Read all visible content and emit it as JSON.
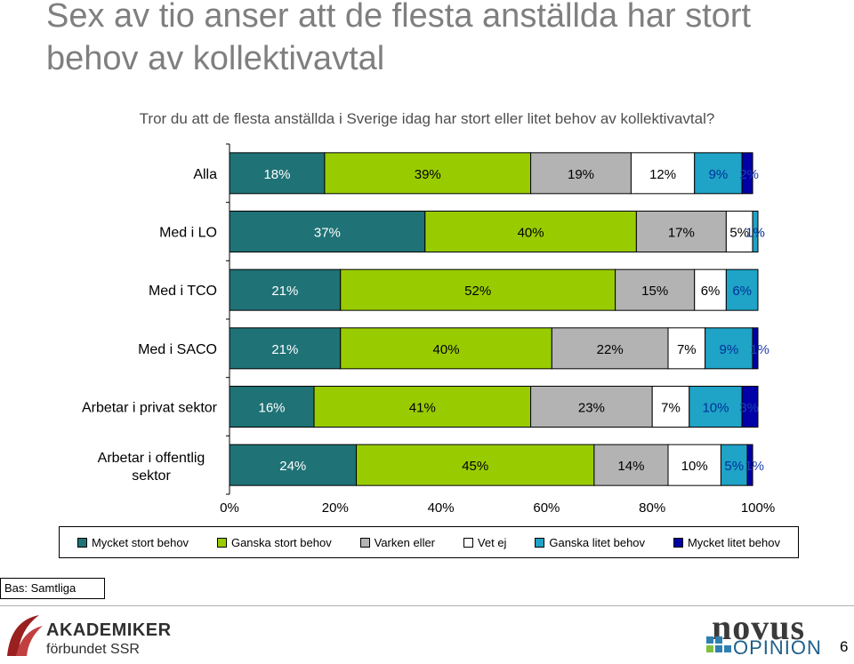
{
  "title": "Sex av tio anser att de flesta anställda har stort behov av kollektivavtal",
  "subtitle": "Tror du att de flesta anställda i Sverige idag har stort eller litet behov av kollektivavtal?",
  "colors": {
    "mycket_stort": "#1f7276",
    "ganska_stort": "#99cc00",
    "varken_eller": "#b3b3b3",
    "vet_ej": "#ffffff",
    "ganska_litet": "#1fa3c6",
    "mycket_litet": "#0000a8"
  },
  "chart_data": {
    "type": "bar",
    "orientation": "horizontal",
    "stacked": true,
    "categories": [
      "Alla",
      "Med i LO",
      "Med i TCO",
      "Med i SACO",
      "Arbetar i privat sektor",
      "Arbetar i offentlig sektor"
    ],
    "series": [
      {
        "name": "Mycket stort behov",
        "values": [
          18,
          37,
          21,
          21,
          16,
          24
        ]
      },
      {
        "name": "Ganska stort behov",
        "values": [
          39,
          40,
          52,
          40,
          41,
          45
        ]
      },
      {
        "name": "Varken eller",
        "values": [
          19,
          17,
          15,
          22,
          23,
          14
        ]
      },
      {
        "name": "Vet ej",
        "values": [
          12,
          5,
          6,
          7,
          7,
          10
        ]
      },
      {
        "name": "Ganska litet behov",
        "values": [
          9,
          1,
          6,
          9,
          10,
          5
        ]
      },
      {
        "name": "Mycket litet behov",
        "values": [
          2,
          0,
          0,
          1,
          3,
          1
        ]
      }
    ],
    "value_labels": [
      [
        "18%",
        "39%",
        "19%",
        "12%",
        "9%",
        "2%"
      ],
      [
        "37%",
        "40%",
        "17%",
        "5%",
        "1%",
        ""
      ],
      [
        "21%",
        "52%",
        "15%",
        "6%",
        "6%",
        ""
      ],
      [
        "21%",
        "40%",
        "22%",
        "7%",
        "9%",
        "1%"
      ],
      [
        "16%",
        "41%",
        "23%",
        "7%",
        "10%",
        "3%"
      ],
      [
        "24%",
        "45%",
        "14%",
        "10%",
        "5%",
        "1%"
      ]
    ],
    "xlim": [
      0,
      100
    ],
    "xticks": [
      "0%",
      "20%",
      "40%",
      "60%",
      "80%",
      "100%"
    ],
    "legend_position": "bottom"
  },
  "legend": [
    {
      "label": "Mycket stort behov",
      "color_key": "mycket_stort"
    },
    {
      "label": "Ganska stort behov",
      "color_key": "ganska_stort"
    },
    {
      "label": "Varken eller",
      "color_key": "varken_eller"
    },
    {
      "label": "Vet ej",
      "color_key": "vet_ej"
    },
    {
      "label": "Ganska litet behov",
      "color_key": "ganska_litet"
    },
    {
      "label": "Mycket litet behov",
      "color_key": "mycket_litet"
    }
  ],
  "base_note": "Bas: Samtliga",
  "logos": {
    "akademiker_line1": "AKADEMIKER",
    "akademiker_line2": "förbundet SSR",
    "novus_line1": "novus",
    "novus_line2": "OPINION"
  },
  "page_number": "6"
}
